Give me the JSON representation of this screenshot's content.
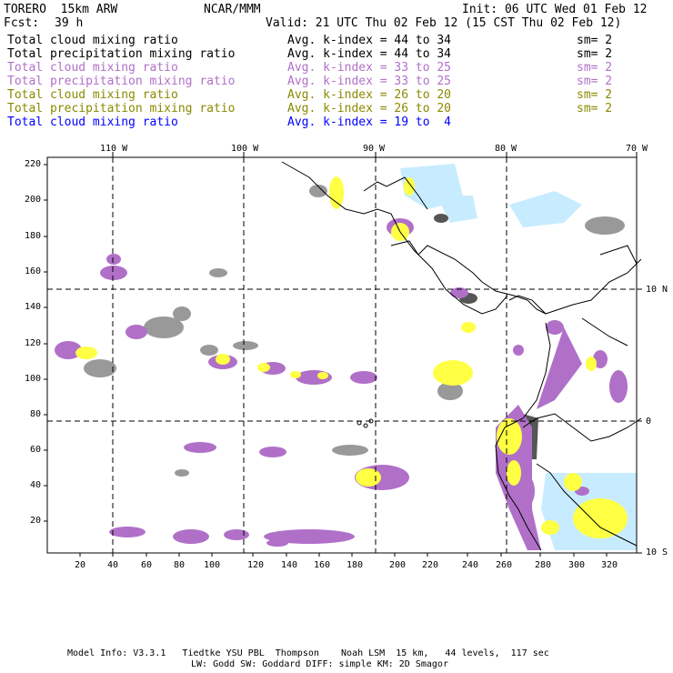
{
  "header": {
    "model": "TORERO  15km ARW",
    "center": "NCAR/MMM",
    "init": "Init: 06 UTC Wed 01 Feb 12",
    "fcst_label": "Fcst:",
    "fcst_value": "39 h",
    "valid": "Valid: 21 UTC Thu 02 Feb 12 (15 CST Thu 02 Feb 12)"
  },
  "legend_rows": [
    {
      "name": "Total cloud mixing ratio",
      "index": "Avg. k-index = 44 to 34",
      "sm": "sm= 2",
      "color": "#000000"
    },
    {
      "name": "Total precipitation mixing ratio",
      "index": "Avg. k-index = 44 to 34",
      "sm": "sm= 2",
      "color": "#000000"
    },
    {
      "name": "Total cloud mixing ratio",
      "index": "Avg. k-index = 33 to 25",
      "sm": "sm= 2",
      "color": "#b070c8"
    },
    {
      "name": "Total precipitation mixing ratio",
      "index": "Avg. k-index = 33 to 25",
      "sm": "sm= 2",
      "color": "#b070c8"
    },
    {
      "name": "Total cloud mixing ratio",
      "index": "Avg. k-index = 26 to 20",
      "sm": "sm= 2",
      "color": "#8a8a00"
    },
    {
      "name": "Total precipitation mixing ratio",
      "index": "Avg. k-index = 26 to 20",
      "sm": "sm= 2",
      "color": "#8a8a00"
    },
    {
      "name": "Total cloud mixing ratio",
      "index": "Avg. k-index = 19 to  4",
      "sm": "",
      "color": "#0000ff"
    }
  ],
  "longitude_labels": [
    "110 W",
    "100 W",
    "90 W",
    "80 W",
    "70 W"
  ],
  "latitude_labels": [
    "10 N",
    "0",
    "10 S"
  ],
  "x_ticks": [
    "20",
    "40",
    "60",
    "80",
    "100",
    "120",
    "140",
    "160",
    "180",
    "200",
    "220",
    "240",
    "260",
    "280",
    "300",
    "320"
  ],
  "y_ticks": [
    "220",
    "200",
    "180",
    "160",
    "140",
    "120",
    "100",
    "80",
    "60",
    "40",
    "20"
  ],
  "footer": {
    "line1": "Model Info: V3.3.1   Tiedtke YSU PBL  Thompson    Noah LSM  15 km,   44 levels,  117 sec",
    "line2": "LW: Godd SW: Goddard DIFF: simple KM: 2D Smagor"
  },
  "colors": {
    "gray": "#999999",
    "dark": "#555555",
    "purple": "#b070c8",
    "yellow": "#ffff44",
    "lightblue": "#c8ecff"
  }
}
